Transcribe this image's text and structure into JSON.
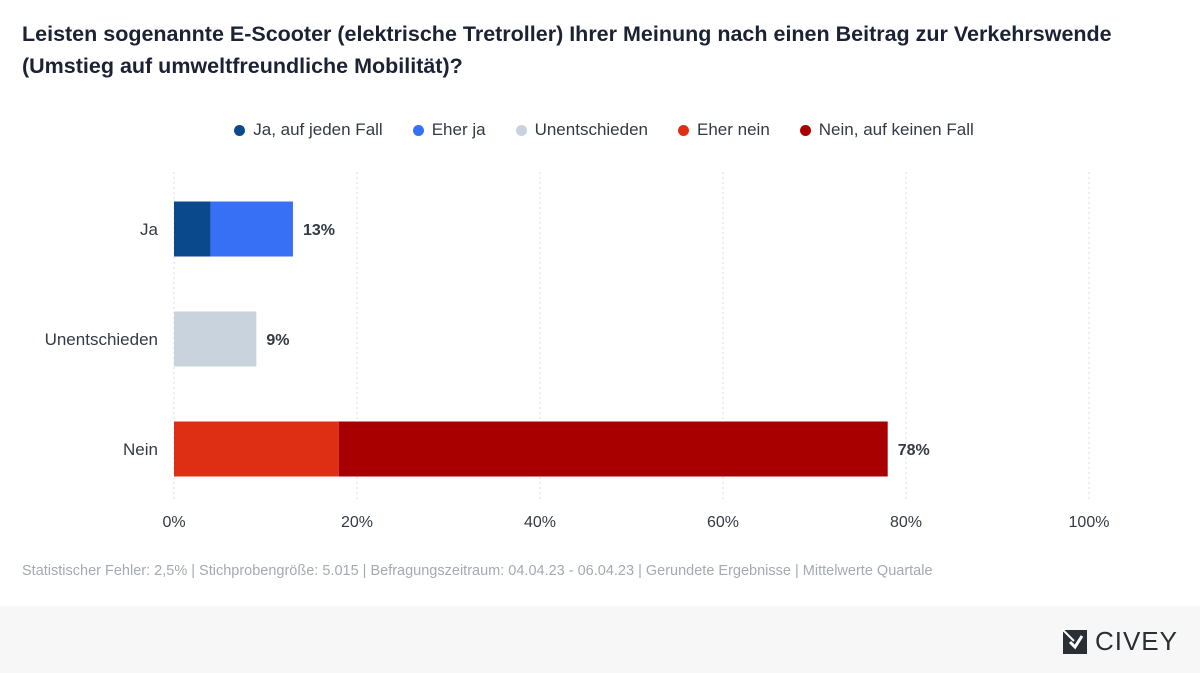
{
  "title": "Leisten sogenannte E-Scooter (elektrische Tretroller) Ihrer Meinung nach einen Beitrag zur Verkehrswende (Umstieg auf umweltfreundliche Mobilität)?",
  "legend": [
    {
      "label": "Ja, auf jeden Fall",
      "color": "#0a4a8c"
    },
    {
      "label": "Eher ja",
      "color": "#3770f5"
    },
    {
      "label": "Unentschieden",
      "color": "#c9d3dd"
    },
    {
      "label": "Eher nein",
      "color": "#de2e14"
    },
    {
      "label": "Nein, auf keinen Fall",
      "color": "#a80000"
    }
  ],
  "chart_data": {
    "type": "bar",
    "orientation": "horizontal",
    "stacked": true,
    "title": "Leisten sogenannte E-Scooter (elektrische Tretroller) Ihrer Meinung nach einen Beitrag zur Verkehrswende (Umstieg auf umweltfreundliche Mobilität)?",
    "categories": [
      "Ja",
      "Unentschieden",
      "Nein"
    ],
    "series": [
      {
        "name": "Ja, auf jeden Fall",
        "color": "#0a4a8c",
        "values": [
          4,
          0,
          0
        ]
      },
      {
        "name": "Eher ja",
        "color": "#3770f5",
        "values": [
          9,
          0,
          0
        ]
      },
      {
        "name": "Unentschieden",
        "color": "#c9d3dd",
        "values": [
          0,
          9,
          0
        ]
      },
      {
        "name": "Eher nein",
        "color": "#de2e14",
        "values": [
          0,
          0,
          18
        ]
      },
      {
        "name": "Nein, auf keinen Fall",
        "color": "#a80000",
        "values": [
          0,
          0,
          60
        ]
      }
    ],
    "totals": [
      "13%",
      "9%",
      "78%"
    ],
    "xlim": [
      0,
      100
    ],
    "xticks": [
      "0%",
      "20%",
      "40%",
      "60%",
      "80%",
      "100%"
    ],
    "grid": true,
    "legend_position": "top-center",
    "xlabel": "",
    "ylabel": ""
  },
  "footnote": "Statistischer Fehler: 2,5% | Stichprobengröße: 5.015 | Befragungszeitraum: 04.04.23 - 06.04.23 | Gerundete Ergebnisse | Mittelwerte Quartale",
  "brand": {
    "name": "CIVEY"
  }
}
